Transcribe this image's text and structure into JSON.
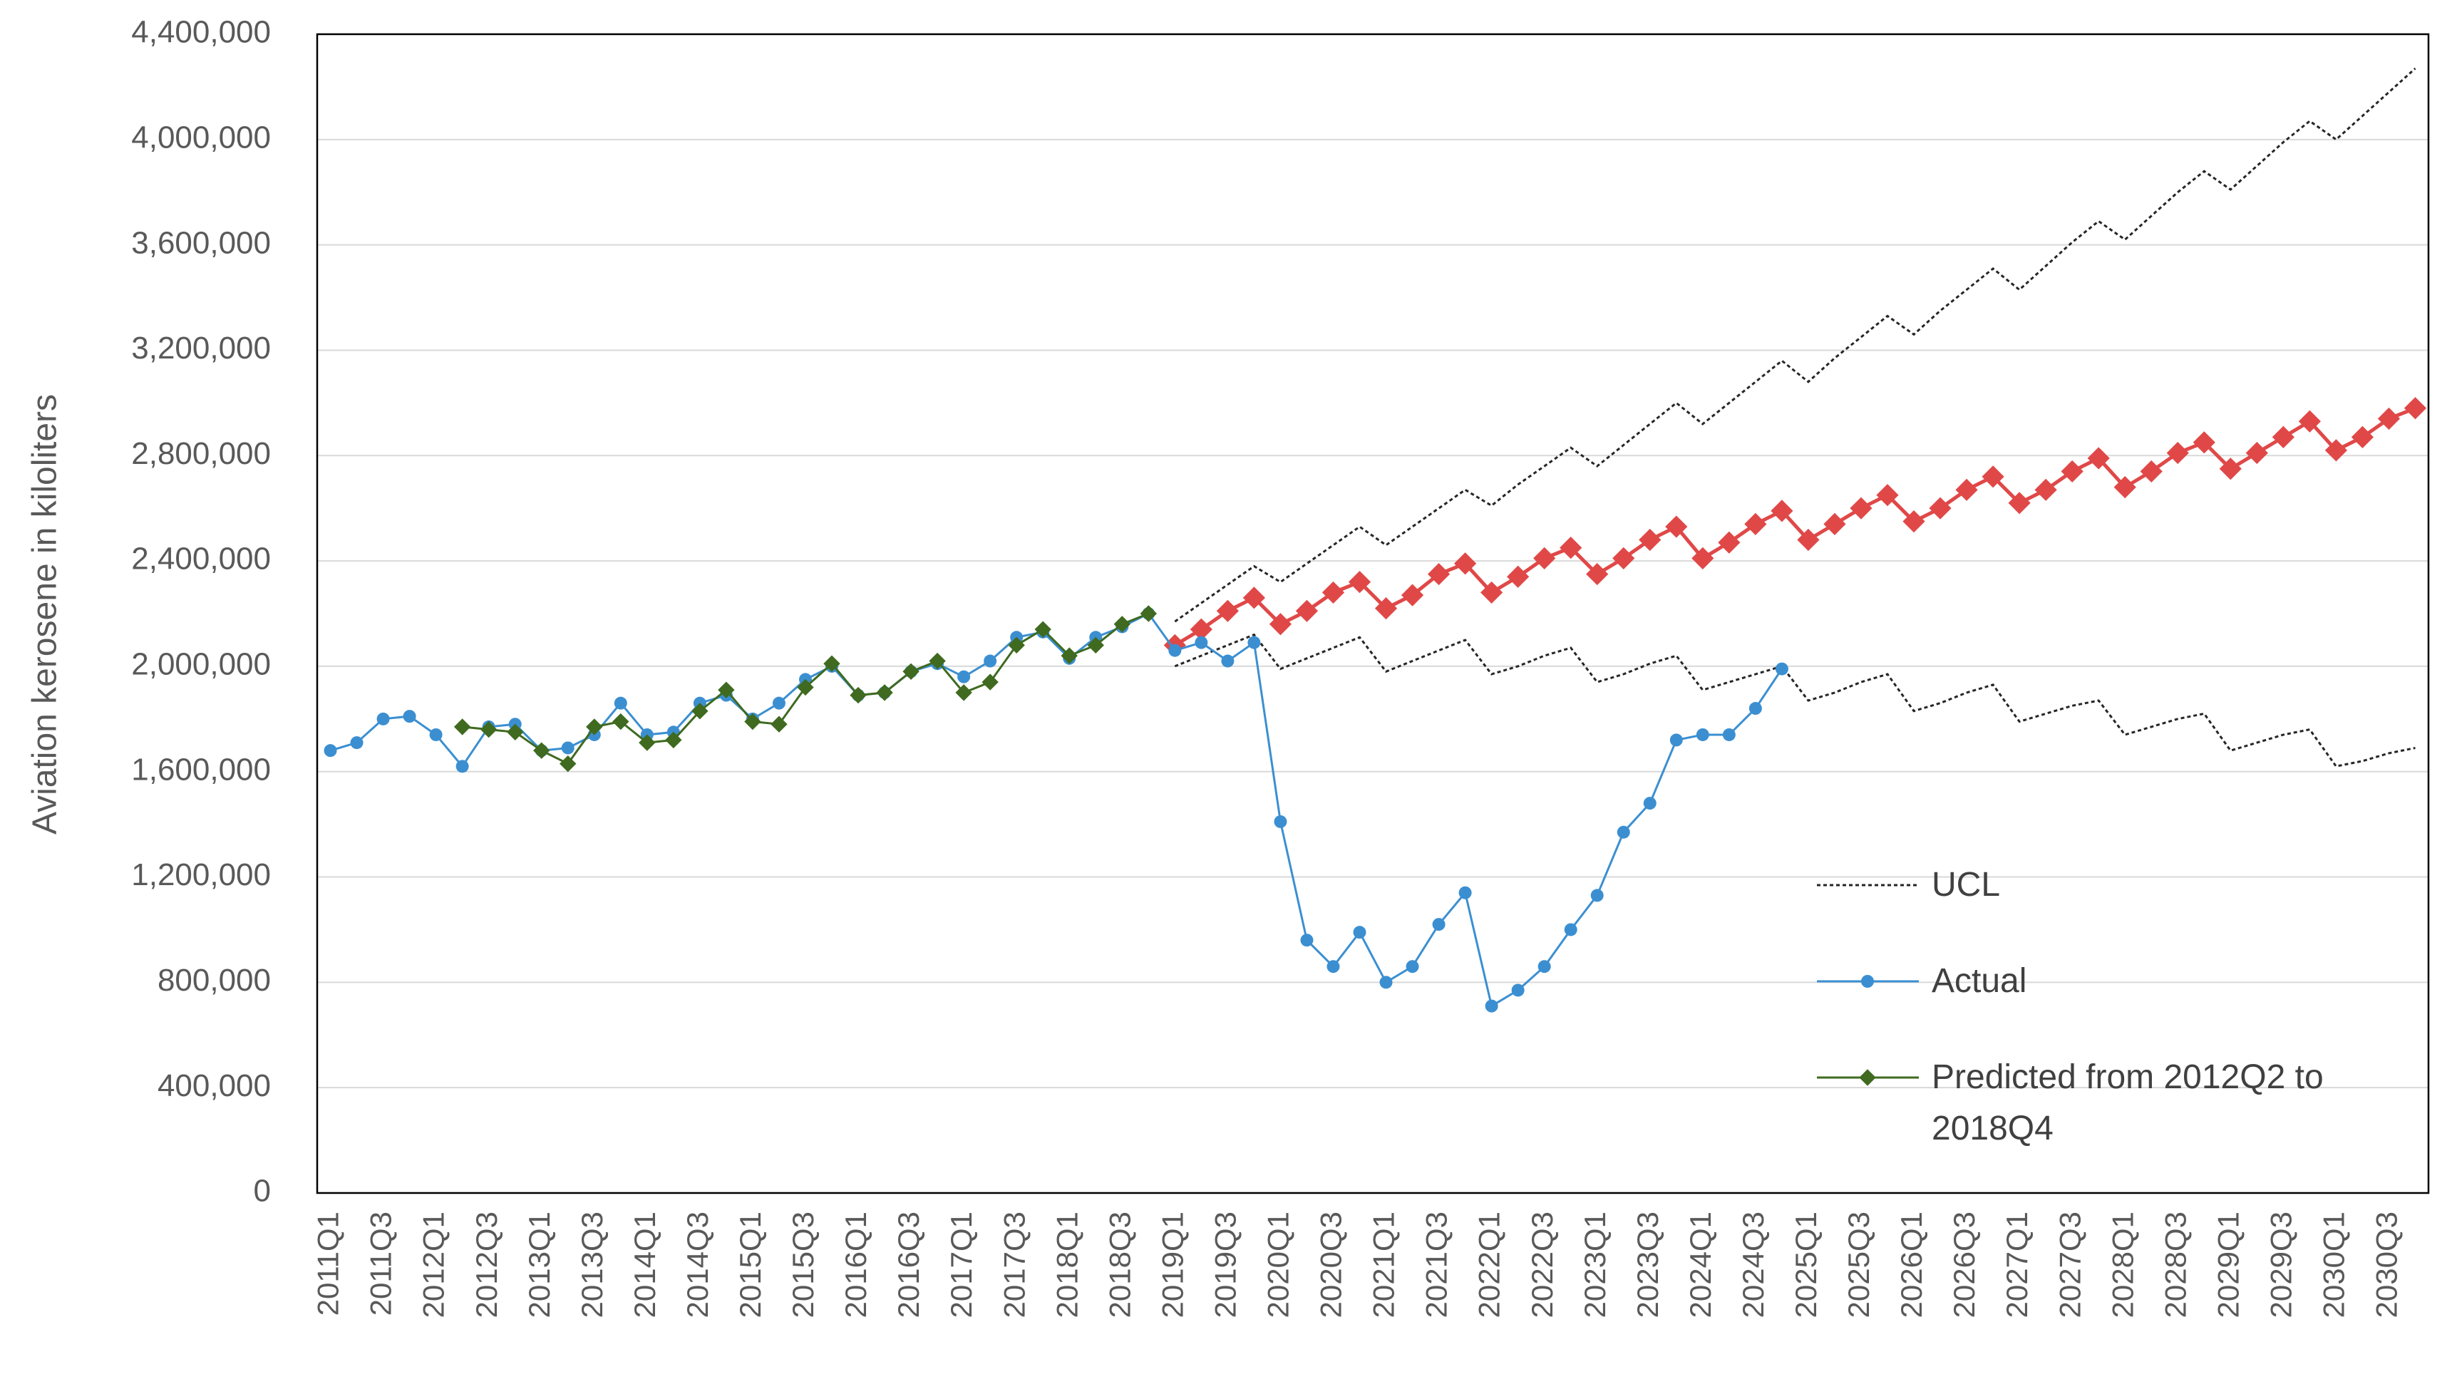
{
  "chart_data": {
    "type": "line",
    "y_label": "Aviation kerosene in kiloliters",
    "categories": [
      "2011Q1",
      null,
      "2011Q3",
      null,
      "2012Q1",
      null,
      "2012Q3",
      null,
      "2013Q1",
      null,
      "2013Q3",
      null,
      "2014Q1",
      null,
      "2014Q3",
      null,
      "2015Q1",
      null,
      "2015Q3",
      null,
      "2016Q1",
      null,
      "2016Q3",
      null,
      "2017Q1",
      null,
      "2017Q3",
      null,
      "2018Q1",
      null,
      "2018Q3",
      null,
      "2019Q1",
      null,
      "2019Q3",
      null,
      "2020Q1",
      null,
      "2020Q3",
      null,
      "2021Q1",
      null,
      "2021Q3",
      null,
      "2022Q1",
      null,
      "2022Q3",
      null,
      "2023Q1",
      null,
      "2023Q3",
      null,
      "2024Q1",
      null,
      "2024Q3",
      null,
      "2025Q1",
      null,
      "2025Q3",
      null,
      "2026Q1",
      null,
      "2026Q3",
      null,
      "2027Q1",
      null,
      "2027Q3",
      null,
      "2028Q1",
      null,
      "2028Q3",
      null,
      "2029Q1",
      null,
      "2029Q3",
      null,
      "2030Q1",
      null,
      "2030Q3",
      null
    ],
    "ylim": [
      0,
      4400000
    ],
    "yticks": [
      0,
      {
        "value": 400000,
        "label": "400,000"
      },
      {
        "value": 800000,
        "label": "800,000"
      },
      {
        "value": 1200000,
        "label": "1,200,000"
      },
      {
        "value": 1600000,
        "label": "1,600,000"
      },
      {
        "value": 2000000,
        "label": "2,000,000"
      },
      {
        "value": 2400000,
        "label": "2,400,000"
      },
      {
        "value": 2800000,
        "label": "2,800,000"
      },
      {
        "value": 3200000,
        "label": "3,200,000"
      },
      {
        "value": 3600000,
        "label": "3,600,000"
      },
      {
        "value": 4000000,
        "label": "4,000,000"
      },
      {
        "value": 4400000,
        "label": "4,400,000"
      }
    ],
    "grid": true,
    "series": [
      {
        "name": "UCL",
        "color": "#262626",
        "style": "dotted",
        "marker": "none",
        "values": [
          null,
          null,
          null,
          null,
          null,
          null,
          null,
          null,
          null,
          null,
          null,
          null,
          null,
          null,
          null,
          null,
          null,
          null,
          null,
          null,
          null,
          null,
          null,
          null,
          null,
          null,
          null,
          null,
          null,
          null,
          null,
          null,
          2170000,
          2240000,
          2310000,
          2380000,
          2320000,
          2390000,
          2460000,
          2530000,
          2460000,
          2530000,
          2600000,
          2670000,
          2610000,
          2690000,
          2760000,
          2830000,
          2760000,
          2840000,
          2920000,
          3000000,
          2920000,
          3000000,
          3080000,
          3160000,
          3080000,
          3170000,
          3250000,
          3330000,
          3260000,
          3350000,
          3430000,
          3510000,
          3430000,
          3520000,
          3610000,
          3690000,
          3620000,
          3710000,
          3800000,
          3880000,
          3810000,
          3900000,
          3990000,
          4070000,
          4000000,
          4090000,
          4180000,
          4270000
        ]
      },
      {
        "color": "#262626",
        "style": "dotted",
        "marker": "none",
        "values": [
          null,
          null,
          null,
          null,
          null,
          null,
          null,
          null,
          null,
          null,
          null,
          null,
          null,
          null,
          null,
          null,
          null,
          null,
          null,
          null,
          null,
          null,
          null,
          null,
          null,
          null,
          null,
          null,
          null,
          null,
          null,
          null,
          2000000,
          2040000,
          2080000,
          2120000,
          1990000,
          2030000,
          2070000,
          2110000,
          1980000,
          2020000,
          2060000,
          2100000,
          1970000,
          2000000,
          2040000,
          2070000,
          1940000,
          1970000,
          2010000,
          2040000,
          1910000,
          1940000,
          1970000,
          2000000,
          1870000,
          1900000,
          1940000,
          1970000,
          1830000,
          1860000,
          1900000,
          1930000,
          1790000,
          1820000,
          1850000,
          1870000,
          1740000,
          1770000,
          1800000,
          1820000,
          1680000,
          1710000,
          1740000,
          1760000,
          1620000,
          1640000,
          1670000,
          1690000
        ]
      },
      {
        "color": "#e04848",
        "style": "solid",
        "marker": "diamond",
        "values": [
          null,
          null,
          null,
          null,
          null,
          null,
          null,
          null,
          null,
          null,
          null,
          null,
          null,
          null,
          null,
          null,
          null,
          null,
          null,
          null,
          null,
          null,
          null,
          null,
          null,
          null,
          null,
          null,
          null,
          null,
          null,
          null,
          2080000,
          2140000,
          2210000,
          2260000,
          2160000,
          2210000,
          2280000,
          2320000,
          2220000,
          2270000,
          2350000,
          2390000,
          2280000,
          2340000,
          2410000,
          2450000,
          2350000,
          2410000,
          2480000,
          2530000,
          2410000,
          2470000,
          2540000,
          2590000,
          2480000,
          2540000,
          2600000,
          2650000,
          2550000,
          2600000,
          2670000,
          2720000,
          2620000,
          2670000,
          2740000,
          2790000,
          2680000,
          2740000,
          2810000,
          2850000,
          2750000,
          2810000,
          2870000,
          2930000,
          2820000,
          2870000,
          2940000,
          2980000
        ]
      },
      {
        "name": "Actual",
        "color": "#3b8fd1",
        "style": "solid",
        "marker": "circle",
        "values": [
          1680000,
          1710000,
          1800000,
          1810000,
          1740000,
          1620000,
          1770000,
          1780000,
          1680000,
          1690000,
          1740000,
          1860000,
          1740000,
          1750000,
          1860000,
          1890000,
          1800000,
          1860000,
          1950000,
          2000000,
          1890000,
          1900000,
          1980000,
          2010000,
          1960000,
          2020000,
          2110000,
          2130000,
          2030000,
          2110000,
          2150000,
          2200000,
          2060000,
          2090000,
          2020000,
          2090000,
          1410000,
          960000,
          860000,
          990000,
          800000,
          860000,
          1020000,
          1140000,
          710000,
          770000,
          860000,
          1000000,
          1130000,
          1370000,
          1480000,
          1720000,
          1740000,
          1740000,
          1840000,
          1990000,
          null,
          null,
          null,
          null,
          null,
          null,
          null,
          null,
          null,
          null,
          null,
          null,
          null,
          null,
          null,
          null,
          null,
          null,
          null,
          null,
          null,
          null,
          null,
          null
        ]
      },
      {
        "name": "Predicted from 2012Q2 to 2018Q4",
        "color": "#3f6a1f",
        "style": "solid",
        "marker": "diamond",
        "values": [
          null,
          null,
          null,
          null,
          null,
          1770000,
          1760000,
          1750000,
          1680000,
          1630000,
          1770000,
          1790000,
          1710000,
          1720000,
          1830000,
          1910000,
          1790000,
          1780000,
          1920000,
          2010000,
          1890000,
          1900000,
          1980000,
          2020000,
          1900000,
          1940000,
          2080000,
          2140000,
          2040000,
          2080000,
          2160000,
          2200000,
          null,
          null,
          null,
          null,
          null,
          null,
          null,
          null,
          null,
          null,
          null,
          null,
          null,
          null,
          null,
          null,
          null,
          null,
          null,
          null,
          null,
          null,
          null,
          null,
          null,
          null,
          null,
          null,
          null,
          null,
          null,
          null,
          null,
          null,
          null,
          null,
          null,
          null,
          null,
          null,
          null,
          null,
          null,
          null,
          null,
          null,
          null,
          null
        ]
      }
    ]
  }
}
